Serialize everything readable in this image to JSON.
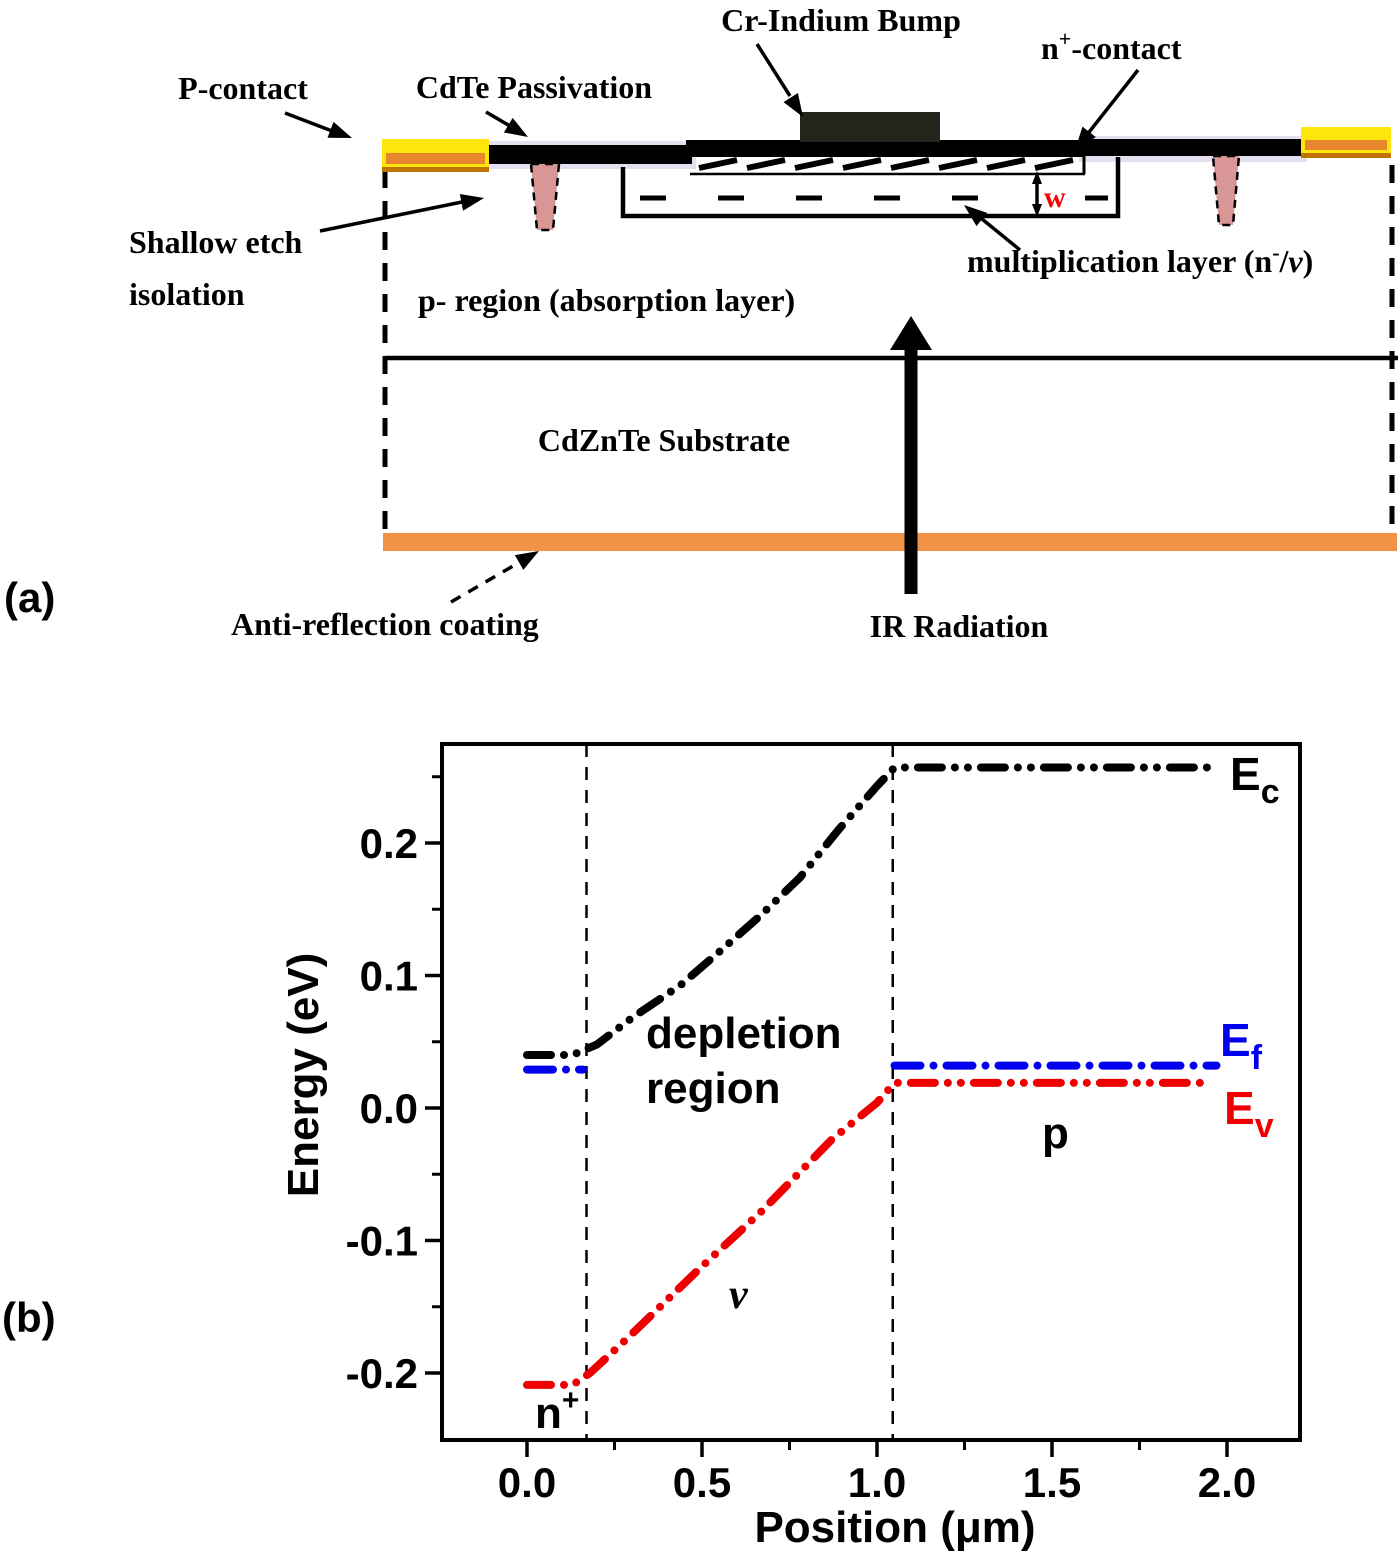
{
  "figure": {
    "panel_a_tag": "(a)",
    "panel_b_tag": "(b)"
  },
  "panel_a": {
    "labels": {
      "cr_indium_bump": "Cr-Indium Bump",
      "n_contact": {
        "base": "n",
        "sup": "+",
        "rest": "-contact"
      },
      "p_contact": "P-contact",
      "cdte_passivation": "CdTe Passivation",
      "shallow_etch_1": "Shallow etch",
      "shallow_etch_2": "isolation",
      "p_region": "p- region (absorption layer)",
      "mult_layer": {
        "pre": "multiplication layer (n",
        "sup": "-",
        "mid": "/",
        "nu": "ν",
        "post": ")"
      },
      "w": "w",
      "substrate": "CdZnTe Substrate",
      "ar_coating": "Anti-reflection coating",
      "ir_radiation": "IR Radiation"
    },
    "colors": {
      "contact_yellow": "#FFE60A",
      "contact_stripe_orange": "#E8862E",
      "contact_edge": "#BF7300",
      "etch_pink": "#D89796",
      "ar_coating_orange": "#F09346",
      "bump_dark": "#25241A",
      "passivation_lavender": "#E3DEF0",
      "w_red": "#FF0000"
    }
  },
  "chart_data": {
    "type": "line",
    "title": "",
    "xlabel": "Position (μm)",
    "ylabel": "Energy (eV)",
    "xlim": [
      -0.25,
      2.25
    ],
    "ylim": [
      -0.25,
      0.275
    ],
    "x_ticks": [
      "0.0",
      "0.5",
      "1.0",
      "1.5",
      "2.0"
    ],
    "y_ticks": [
      "0.2",
      "0.1",
      "0.0",
      "-0.1",
      "-0.2"
    ],
    "x_minor_ticks": [
      0.25,
      0.75,
      1.25,
      1.75
    ],
    "y_minor_ticks": [
      0.25,
      0.15,
      0.05,
      -0.05,
      -0.15
    ],
    "grid": false,
    "legend": false,
    "boundary_lines_x": [
      0.17,
      1.045
    ],
    "series": [
      {
        "name": "Ec",
        "color": "#000000",
        "style": "dash-dot-dot",
        "points": [
          [
            0.0,
            0.04
          ],
          [
            0.13,
            0.04
          ],
          [
            0.2,
            0.048
          ],
          [
            0.3,
            0.068
          ],
          [
            0.44,
            0.093
          ],
          [
            0.55,
            0.118
          ],
          [
            0.67,
            0.146
          ],
          [
            0.78,
            0.174
          ],
          [
            0.89,
            0.21
          ],
          [
            1.0,
            0.243
          ],
          [
            1.05,
            0.257
          ],
          [
            1.95,
            0.257
          ]
        ]
      },
      {
        "name": "Ef",
        "color": "#0000EE",
        "style": "dash-dot",
        "segments": [
          [
            [
              0.0,
              0.029
            ],
            [
              0.16,
              0.029
            ]
          ],
          [
            [
              1.05,
              0.032
            ],
            [
              1.97,
              0.032
            ]
          ]
        ]
      },
      {
        "name": "Ev",
        "color": "#EE0000",
        "style": "dash-dot-dot",
        "points": [
          [
            0.0,
            -0.209
          ],
          [
            0.13,
            -0.209
          ],
          [
            0.18,
            -0.2
          ],
          [
            0.29,
            -0.173
          ],
          [
            0.49,
            -0.122
          ],
          [
            0.67,
            -0.078
          ],
          [
            0.87,
            -0.024
          ],
          [
            1.0,
            0.004
          ],
          [
            1.05,
            0.019
          ],
          [
            1.94,
            0.019
          ]
        ]
      }
    ],
    "labels": {
      "ec": {
        "base": "E",
        "sub": "c"
      },
      "ef": {
        "base": "E",
        "sub": "f"
      },
      "ev": {
        "base": "E",
        "sub": "v"
      },
      "depletion_line1": "depletion",
      "depletion_line2": "region",
      "p_region": "p",
      "nu_region": "ν",
      "n_plus": {
        "base": "n",
        "sup": "+"
      }
    }
  }
}
